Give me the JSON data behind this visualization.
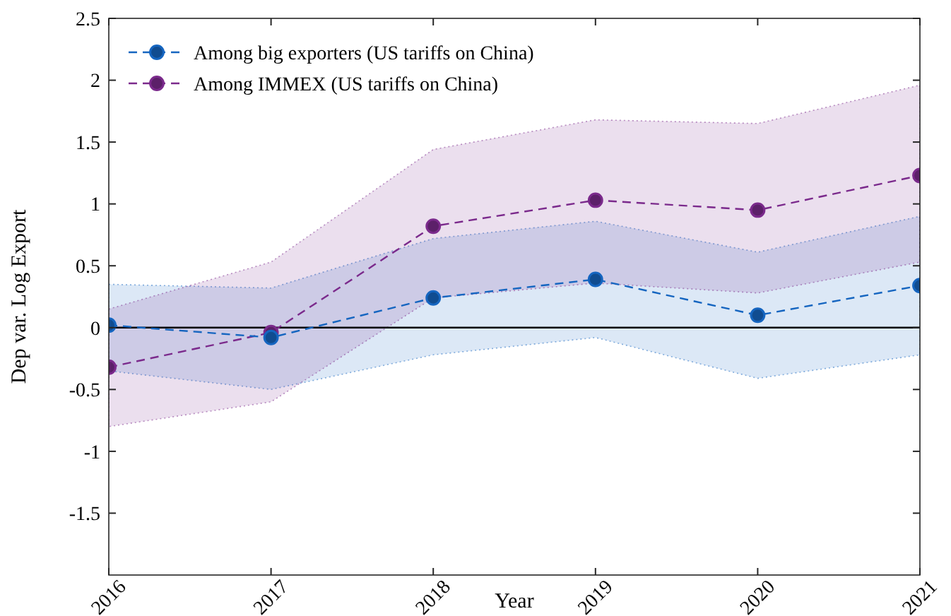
{
  "chart_data": {
    "type": "line",
    "xlabel": "Year",
    "ylabel": "Dep var. Log Export",
    "x": [
      2016,
      2017,
      2018,
      2019,
      2020,
      2021
    ],
    "xlim": [
      2016,
      2021
    ],
    "xticks": [
      2016,
      2017,
      2018,
      2019,
      2020,
      2021
    ],
    "ylim": [
      -2,
      2.5
    ],
    "yticks": [
      -1.5,
      -1,
      -0.5,
      0,
      0.5,
      1,
      1.5,
      2,
      2.5
    ],
    "series": [
      {
        "name": "Among big exporters (US tariffs on China)",
        "color": "#1565c0",
        "values": [
          0.02,
          -0.08,
          0.24,
          0.39,
          0.1,
          0.34
        ],
        "lower": [
          -0.35,
          -0.5,
          -0.22,
          -0.08,
          -0.41,
          -0.22
        ],
        "upper": [
          0.35,
          0.32,
          0.72,
          0.86,
          0.61,
          0.9
        ]
      },
      {
        "name": "Among IMMEX (US tariffs on China)",
        "color": "#7b2a8c",
        "values": [
          -0.32,
          -0.04,
          0.82,
          1.03,
          0.95,
          1.23
        ],
        "lower": [
          -0.8,
          -0.6,
          0.24,
          0.36,
          0.28,
          0.53
        ],
        "upper": [
          0.15,
          0.53,
          1.44,
          1.68,
          1.65,
          1.96
        ]
      }
    ],
    "ref_lines": [
      {
        "axis": "y",
        "value": 0,
        "color": "#000000",
        "line_style": "solid"
      }
    ],
    "legend": "top left",
    "marker": "circle",
    "line_style": "dashed",
    "grid": false
  }
}
